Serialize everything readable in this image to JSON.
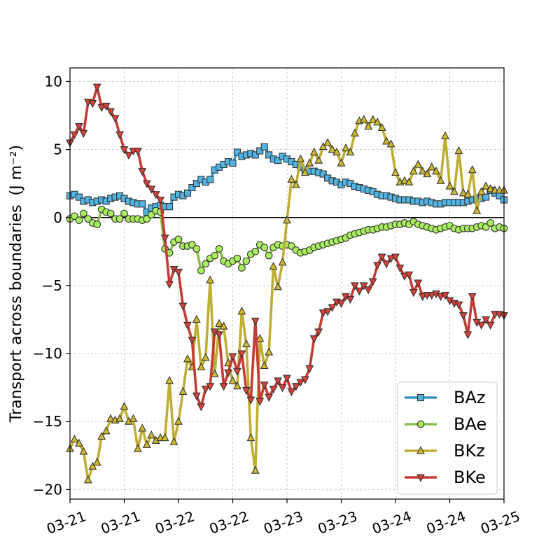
{
  "chart_data": {
    "type": "line",
    "title": "",
    "xlabel": "",
    "ylabel": "Transport across boundaries",
    "ylabel_unit": "(J m⁻²)",
    "ylim": [
      -20.7,
      11
    ],
    "yticks": [
      10,
      5,
      0,
      -5,
      -10,
      -15,
      -20
    ],
    "ytick_labels": [
      "10",
      "5",
      "0",
      "−5",
      "−10",
      "−15",
      "−20"
    ],
    "xlim": [
      0,
      96
    ],
    "xticks": [
      0,
      12,
      24,
      36,
      48,
      60,
      72,
      84,
      96
    ],
    "xtick_labels": [
      "03-21",
      "03-21",
      "03-22",
      "03-22",
      "03-23",
      "03-23",
      "03-24",
      "03-24",
      "03-25"
    ],
    "x_unit": "hours from 03-21 00:00",
    "grid": true,
    "zero_line": true,
    "legend_position": "lower-right",
    "series": [
      {
        "name": "BAz",
        "color": "#3b96c2",
        "marker_fill": "#4fb5e4",
        "marker": "square",
        "values": [
          1.6,
          1.7,
          1.5,
          1.2,
          1.3,
          1.1,
          1.2,
          1.3,
          1.2,
          1.4,
          1.5,
          1.6,
          1.4,
          1.2,
          1.1,
          1.0,
          1.0,
          0.4,
          0.7,
          0.8,
          0.9,
          0.8,
          0.8,
          1.5,
          1.7,
          1.6,
          1.8,
          2.2,
          2.5,
          2.8,
          2.6,
          2.8,
          3.5,
          3.7,
          3.9,
          4.1,
          4.0,
          4.8,
          4.5,
          4.6,
          4.7,
          4.6,
          4.9,
          5.2,
          4.6,
          4.3,
          4.2,
          4.5,
          4.3,
          4.1,
          3.9,
          3.7,
          3.5,
          3.4,
          3.4,
          3.3,
          3.2,
          2.9,
          2.7,
          2.6,
          2.4,
          2.6,
          2.5,
          2.3,
          2.2,
          2.1,
          2.0,
          1.9,
          1.7,
          1.6,
          1.6,
          1.5,
          1.4,
          1.3,
          1.3,
          1.3,
          1.2,
          1.2,
          1.1,
          1.2,
          1.1,
          1.0,
          1.0,
          1.1,
          1.1,
          1.1,
          1.1,
          1.1,
          1.2,
          1.3,
          1.4,
          1.4,
          1.5,
          2.0,
          1.8,
          1.6,
          1.3
        ]
      },
      {
        "name": "BAe",
        "color": "#8cbf4a",
        "marker_fill": "#a9ee5e",
        "marker": "circle",
        "values": [
          -0.1,
          0.1,
          -0.2,
          0.3,
          -0.1,
          -0.4,
          -0.5,
          0.6,
          0.4,
          0.3,
          -0.1,
          -0.1,
          0.3,
          -0.1,
          -0.1,
          -0.1,
          -0.2,
          -0.1,
          0.2,
          0.5,
          0.4,
          -2.3,
          -2.6,
          -1.8,
          -1.6,
          -2.1,
          -2.1,
          -2.0,
          -2.3,
          -3.9,
          -3.4,
          -3.0,
          -2.8,
          -2.3,
          -3.2,
          -3.4,
          -3.2,
          -3.0,
          -3.7,
          -3.2,
          -2.7,
          -2.5,
          -2.0,
          -2.2,
          -2.8,
          -2.2,
          -2.0,
          -2.1,
          -2.0,
          -2.1,
          -2.4,
          -2.6,
          -2.5,
          -2.4,
          -2.2,
          -2.1,
          -2.0,
          -1.9,
          -1.8,
          -1.7,
          -1.6,
          -1.5,
          -1.3,
          -1.2,
          -1.1,
          -1.0,
          -0.9,
          -0.9,
          -0.8,
          -0.7,
          -0.7,
          -0.6,
          -0.5,
          -0.5,
          -0.4,
          -0.5,
          -0.3,
          -0.5,
          -0.6,
          -0.7,
          -0.8,
          -0.9,
          -0.8,
          -0.7,
          -0.6,
          -0.8,
          -0.9,
          -0.8,
          -0.8,
          -0.8,
          -0.7,
          -0.6,
          -0.7,
          -0.4,
          -0.8,
          -0.7,
          -0.8
        ]
      },
      {
        "name": "BKz",
        "color": "#bfae35",
        "marker_fill": "#d0bb2c",
        "marker": "triangle-up",
        "values": [
          -17.0,
          -16.3,
          -16.6,
          -17.2,
          -19.3,
          -18.3,
          -18.0,
          -16.1,
          -15.7,
          -14.8,
          -14.9,
          -14.8,
          -13.9,
          -15.0,
          -14.8,
          -17.0,
          -15.5,
          -16.7,
          -16.0,
          -16.4,
          -16.2,
          -16.2,
          -12.0,
          -16.5,
          -15.0,
          -12.8,
          -10.4,
          -11.0,
          -7.5,
          -11.0,
          -10.3,
          -4.6,
          -11.5,
          -7.8,
          -8.0,
          -10.7,
          -12.0,
          -12.4,
          -6.9,
          -9.3,
          -16.2,
          -18.6,
          -8.9,
          -10.9,
          -9.9,
          -3.6,
          -5.1,
          -3.3,
          -0.2,
          2.8,
          2.4,
          4.3,
          3.3,
          4.0,
          4.8,
          4.2,
          5.2,
          5.5,
          5.0,
          4.8,
          4.0,
          5.1,
          4.8,
          6.2,
          7.1,
          7.2,
          6.7,
          7.2,
          7.0,
          6.6,
          5.6,
          5.4,
          3.3,
          2.6,
          2.7,
          2.6,
          3.4,
          3.9,
          3.4,
          3.2,
          3.7,
          3.4,
          2.7,
          6.0,
          2.3,
          1.9,
          4.9,
          1.8,
          1.7,
          3.5,
          0.5,
          1.9,
          2.3,
          2.1,
          2.0,
          2.0,
          2.0
        ]
      },
      {
        "name": "BKe",
        "color": "#c43b35",
        "marker_fill": "#d84038",
        "marker": "triangle-down",
        "values": [
          5.5,
          6.1,
          6.7,
          6.2,
          8.5,
          8.4,
          9.6,
          8.1,
          8.2,
          7.8,
          7.3,
          6.1,
          5.0,
          4.6,
          4.9,
          4.9,
          3.4,
          2.5,
          2.1,
          1.7,
          1.3,
          -1.5,
          -4.9,
          -3.8,
          -4.0,
          -6.5,
          -7.9,
          -9.0,
          -13.1,
          -13.9,
          -12.6,
          -12.4,
          -8.4,
          -8.6,
          -12.4,
          -11.4,
          -10.2,
          -11.3,
          -10.0,
          -12.7,
          -13.4,
          -7.6,
          -13.5,
          -12.3,
          -13.2,
          -12.6,
          -12.0,
          -12.5,
          -11.8,
          -12.8,
          -12.4,
          -12.1,
          -11.9,
          -11.1,
          -8.9,
          -8.4,
          -7.0,
          -6.9,
          -6.6,
          -6.2,
          -6.3,
          -5.8,
          -6.0,
          -5.0,
          -5.4,
          -5.0,
          -5.3,
          -4.7,
          -3.5,
          -2.9,
          -3.4,
          -3.0,
          -2.9,
          -3.7,
          -4.3,
          -4.2,
          -5.5,
          -4.8,
          -5.8,
          -5.7,
          -5.7,
          -5.6,
          -5.8,
          -5.7,
          -6.1,
          -6.3,
          -6.4,
          -7.2,
          -8.6,
          -5.8,
          -7.7,
          -7.9,
          -7.5,
          -7.9,
          -7.1,
          -7.1,
          -7.2
        ]
      }
    ]
  }
}
